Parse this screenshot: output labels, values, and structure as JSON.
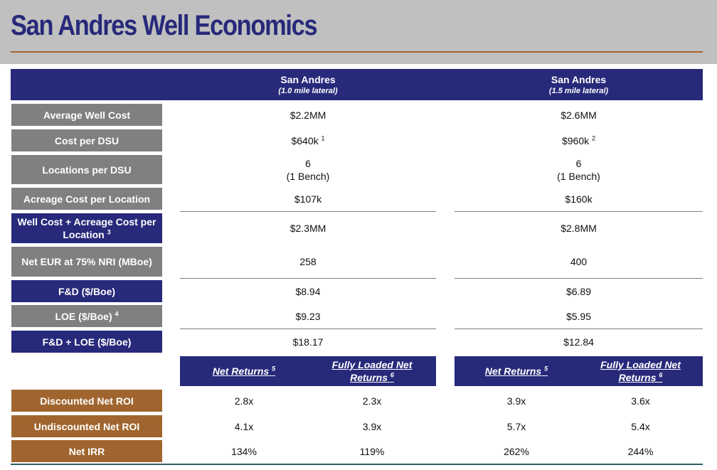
{
  "title": "San Andres Well Economics",
  "columns": [
    {
      "main": "San Andres",
      "sub": "(1.0 mile lateral)"
    },
    {
      "main": "San Andres",
      "sub": "(1.5 mile lateral)"
    }
  ],
  "rows": {
    "avg_well_cost": {
      "label": "Average Well Cost",
      "values": [
        "$2.2MM",
        "$2.6MM"
      ]
    },
    "cost_per_dsu": {
      "label": "Cost per DSU",
      "values": [
        "$640k",
        "$960k"
      ],
      "notes": [
        "1",
        "2"
      ]
    },
    "locations_per_dsu": {
      "label": "Locations per DSU",
      "values": [
        "6",
        "6"
      ],
      "values2": [
        "(1 Bench)",
        "(1 Bench)"
      ]
    },
    "acreage_cost": {
      "label": "Acreage Cost per Location",
      "values": [
        "$107k",
        "$160k"
      ]
    },
    "well_plus_acreage": {
      "label": "Well Cost + Acreage Cost per Location",
      "note": "3",
      "values": [
        "$2.3MM",
        "$2.8MM"
      ]
    },
    "net_eur": {
      "label": "Net EUR at 75% NRI (MBoe)",
      "values": [
        "258",
        "400"
      ]
    },
    "fd": {
      "label": "F&D ($/Boe)",
      "values": [
        "$8.94",
        "$6.89"
      ]
    },
    "loe": {
      "label": "LOE ($/Boe)",
      "note": "4",
      "values": [
        "$9.23",
        "$5.95"
      ]
    },
    "fd_loe": {
      "label": "F&D + LOE ($/Boe)",
      "values": [
        "$18.17",
        "$12.84"
      ]
    }
  },
  "returns_headers": {
    "net": {
      "label": "Net Returns",
      "note": "5"
    },
    "fully_loaded": {
      "label": "Fully Loaded Net Returns",
      "note": "6"
    }
  },
  "returns_rows": {
    "discounted_roi": {
      "label": "Discounted Net ROI",
      "values": [
        "2.8x",
        "2.3x",
        "3.9x",
        "3.6x"
      ]
    },
    "undiscounted_roi": {
      "label": "Undiscounted Net ROI",
      "values": [
        "4.1x",
        "3.9x",
        "5.7x",
        "5.4x"
      ]
    },
    "net_irr": {
      "label": "Net IRR",
      "values": [
        "134%",
        "119%",
        "262%",
        "244%"
      ]
    }
  },
  "colors": {
    "navy": "#27297a",
    "gray": "#808080",
    "brown": "#a0652e",
    "header_bg": "#c0c0c0",
    "title_rule": "#a8652a"
  }
}
